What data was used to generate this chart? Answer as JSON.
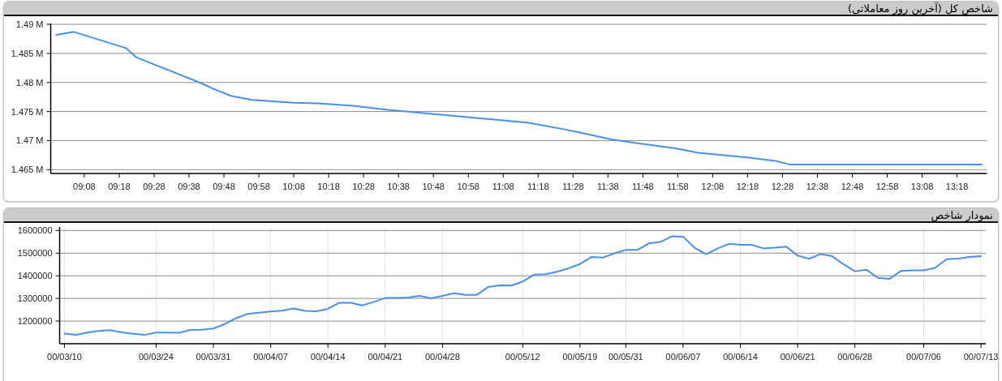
{
  "chart_data": [
    {
      "type": "line",
      "title": "شاخص کل (آخرین روز معاملاتی)",
      "x": [
        9.0,
        9.0833,
        9.3333,
        9.3833,
        9.6833,
        9.75,
        9.8333,
        9.9333,
        10.1333,
        10.25,
        10.4167,
        10.5833,
        11.25,
        11.4167,
        11.5,
        11.65,
        11.7833,
        11.95,
        12.0667,
        12.3,
        12.4333,
        12.5,
        13.4167
      ],
      "series": [
        {
          "color": "#4a8fe8",
          "values": [
            1488200,
            1488700,
            1485900,
            1484300,
            1480000,
            1478900,
            1477700,
            1477000,
            1476500,
            1476400,
            1476000,
            1475300,
            1473100,
            1472000,
            1471400,
            1470200,
            1469500,
            1468700,
            1467900,
            1467100,
            1466500,
            1465900,
            1465900
          ]
        }
      ],
      "xlim": [
        8.973,
        13.443
      ],
      "xticks": [
        {
          "value": 9.1333,
          "label": "09:08"
        },
        {
          "value": 9.3,
          "label": "09:18"
        },
        {
          "value": 9.4667,
          "label": "09:28"
        },
        {
          "value": 9.6333,
          "label": "09:38"
        },
        {
          "value": 9.8,
          "label": "09:48"
        },
        {
          "value": 9.9667,
          "label": "09:58"
        },
        {
          "value": 10.1333,
          "label": "10:08"
        },
        {
          "value": 10.3,
          "label": "10:18"
        },
        {
          "value": 10.4667,
          "label": "10:28"
        },
        {
          "value": 10.6333,
          "label": "10:38"
        },
        {
          "value": 10.8,
          "label": "10:48"
        },
        {
          "value": 10.9667,
          "label": "10:58"
        },
        {
          "value": 11.1333,
          "label": "11:08"
        },
        {
          "value": 11.3,
          "label": "11:18"
        },
        {
          "value": 11.4667,
          "label": "11:28"
        },
        {
          "value": 11.6333,
          "label": "11:38"
        },
        {
          "value": 11.8,
          "label": "11:48"
        },
        {
          "value": 11.9667,
          "label": "11:58"
        },
        {
          "value": 12.1333,
          "label": "12:08"
        },
        {
          "value": 12.3,
          "label": "12:18"
        },
        {
          "value": 12.4667,
          "label": "12:28"
        },
        {
          "value": 12.6333,
          "label": "12:38"
        },
        {
          "value": 12.8,
          "label": "12:48"
        },
        {
          "value": 12.9667,
          "label": "12:58"
        },
        {
          "value": 13.1333,
          "label": "13:08"
        },
        {
          "value": 13.3,
          "label": "13:18"
        }
      ],
      "ylim": [
        1464350,
        1490000
      ],
      "yticks": [
        {
          "value": 1465000,
          "label": "1.465 M"
        },
        {
          "value": 1470000,
          "label": "1.47 M"
        },
        {
          "value": 1475000,
          "label": "1.475 M"
        },
        {
          "value": 1480000,
          "label": "1.48 M"
        },
        {
          "value": 1485000,
          "label": "1.485 M"
        },
        {
          "value": 1490000,
          "label": "1.49 M"
        }
      ],
      "grid": "y"
    },
    {
      "type": "line",
      "title": "نمودار شاخص",
      "categories": [
        "00/03/10",
        null,
        null,
        null,
        null,
        null,
        null,
        null,
        "00/03/24",
        null,
        null,
        null,
        null,
        "00/03/31",
        null,
        null,
        null,
        null,
        "00/04/07",
        null,
        null,
        null,
        null,
        "00/04/14",
        null,
        null,
        null,
        null,
        "00/04/21",
        null,
        null,
        null,
        null,
        "00/04/28",
        null,
        null,
        null,
        null,
        null,
        null,
        "00/05/12",
        null,
        null,
        null,
        null,
        "00/05/19",
        null,
        null,
        null,
        "00/05/31",
        null,
        null,
        null,
        null,
        "00/06/07",
        null,
        null,
        null,
        null,
        "00/06/14",
        null,
        null,
        null,
        null,
        "00/06/21",
        null,
        null,
        null,
        null,
        "00/06/28",
        null,
        null,
        null,
        null,
        null,
        "00/07/06",
        null,
        null,
        null,
        null,
        "00/07/13"
      ],
      "series": [
        {
          "color": "#4a8fe8",
          "values": [
            1145000,
            1139000,
            1149000,
            1156000,
            1160000,
            1150000,
            1144000,
            1139000,
            1149000,
            1149000,
            1148000,
            1161000,
            1162000,
            1167000,
            1187000,
            1213000,
            1232000,
            1237000,
            1242000,
            1246000,
            1256000,
            1245000,
            1243000,
            1254000,
            1281000,
            1281000,
            1269000,
            1285000,
            1302000,
            1302000,
            1304000,
            1311000,
            1301000,
            1311000,
            1323000,
            1316000,
            1316000,
            1351000,
            1358000,
            1357000,
            1374000,
            1405000,
            1407000,
            1418000,
            1433000,
            1452000,
            1483000,
            1480000,
            1499000,
            1514000,
            1514000,
            1543000,
            1549000,
            1574000,
            1573000,
            1524000,
            1495000,
            1520000,
            1541000,
            1537000,
            1537000,
            1521000,
            1524000,
            1529000,
            1489000,
            1475000,
            1496000,
            1487000,
            1451000,
            1420000,
            1427000,
            1391000,
            1386000,
            1421000,
            1424000,
            1424000,
            1435000,
            1473000,
            1476000,
            1483000,
            1487000
          ]
        }
      ],
      "ylim": [
        1100000,
        1612000
      ],
      "yticks": [
        1200000,
        1300000,
        1400000,
        1500000,
        1600000
      ],
      "grid": true
    }
  ]
}
